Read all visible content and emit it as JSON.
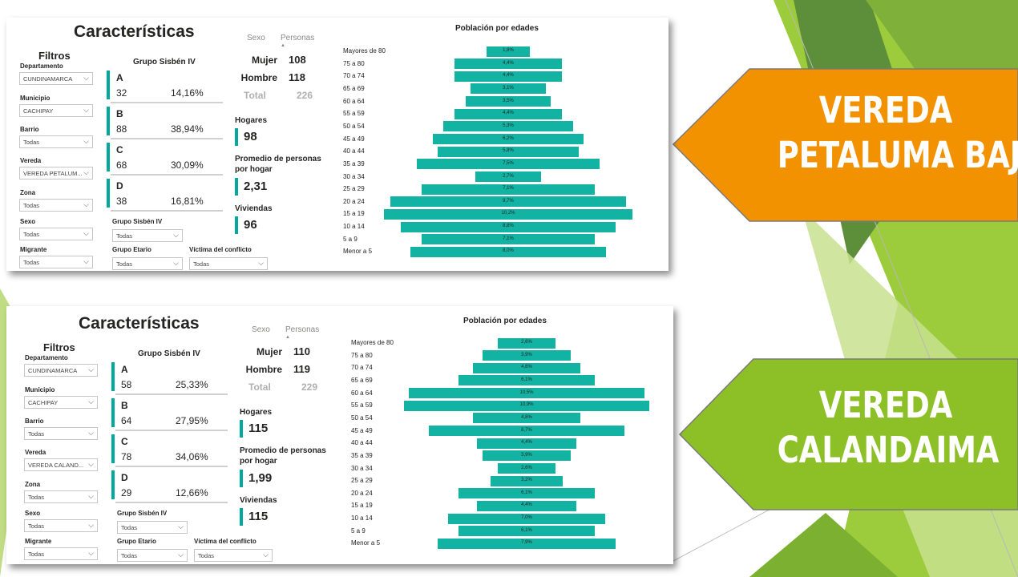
{
  "colors": {
    "teal": "#00a89d",
    "orange": "#f39200",
    "green": "#8dc027"
  },
  "banners": [
    {
      "line1": "VEREDA",
      "line2": "PETALUMA BAJA"
    },
    {
      "line1": "VEREDA",
      "line2": "CALANDAIMA"
    }
  ],
  "panels": [
    {
      "title": "Características",
      "filters_title": "Filtros",
      "filters": [
        {
          "label": "Departamento",
          "value": "CUNDINAMARCA"
        },
        {
          "label": "Municipio",
          "value": "CACHIPAY"
        },
        {
          "label": "Barrio",
          "value": "Todas"
        },
        {
          "label": "Vereda",
          "value": "VEREDA PETALUM..."
        },
        {
          "label": "Zona",
          "value": "Todas"
        },
        {
          "label": "Sexo",
          "value": "Todas"
        },
        {
          "label": "Migrante",
          "value": "Todas"
        }
      ],
      "extra_filters": [
        {
          "label": "Grupo Sisbén IV",
          "value": "Todas"
        },
        {
          "label": "Grupo Etario",
          "value": "Todas"
        },
        {
          "label": "Víctima del conflicto",
          "value": "Todas"
        }
      ],
      "group_title": "Grupo Sisbén IV",
      "groups": [
        {
          "letter": "A",
          "count": "32",
          "pct": "14,16%"
        },
        {
          "letter": "B",
          "count": "88",
          "pct": "38,94%"
        },
        {
          "letter": "C",
          "count": "68",
          "pct": "30,09%"
        },
        {
          "letter": "D",
          "count": "38",
          "pct": "16,81%"
        }
      ],
      "sex_table": {
        "col_sexo": "Sexo",
        "col_personas": "Personas",
        "rows": [
          {
            "label": "Mujer",
            "value": "108"
          },
          {
            "label": "Hombre",
            "value": "118"
          }
        ],
        "total_label": "Total",
        "total_value": "226"
      },
      "kpis": [
        {
          "label": "Hogares",
          "value": "98"
        },
        {
          "label": "Promedio de personas por hogar",
          "value": "2,31"
        },
        {
          "label": "Viviendas",
          "value": "96"
        }
      ],
      "chart_data": {
        "type": "bar",
        "title": "Población por edades",
        "categories": [
          "Mayores de 80",
          "75 a 80",
          "70 a 74",
          "65 a 69",
          "60 a 64",
          "55 a 59",
          "50 a 54",
          "45 a 49",
          "40 a 44",
          "35 a 39",
          "30 a 34",
          "25 a 29",
          "20 a 24",
          "15 a 19",
          "10 a 14",
          "5 a 9",
          "Menor a 5"
        ],
        "values": [
          1.8,
          4.4,
          4.4,
          3.1,
          3.5,
          4.4,
          5.3,
          6.2,
          5.8,
          7.5,
          2.7,
          7.1,
          9.7,
          10.2,
          8.8,
          7.1,
          8.0
        ],
        "labels": [
          "1,8%",
          "4,4%",
          "4,4%",
          "3,1%",
          "3,5%",
          "4,4%",
          "5,3%",
          "6,2%",
          "5,8%",
          "7,5%",
          "2,7%",
          "7,1%",
          "9,7%",
          "10,2%",
          "8,8%",
          "7,1%",
          "8,0%"
        ]
      }
    },
    {
      "title": "Características",
      "filters_title": "Filtros",
      "filters": [
        {
          "label": "Departamento",
          "value": "CUNDINAMARCA"
        },
        {
          "label": "Municipio",
          "value": "CACHIPAY"
        },
        {
          "label": "Barrio",
          "value": "Todas"
        },
        {
          "label": "Vereda",
          "value": "VEREDA CALAND..."
        },
        {
          "label": "Zona",
          "value": "Todas"
        },
        {
          "label": "Sexo",
          "value": "Todas"
        },
        {
          "label": "Migrante",
          "value": "Todas"
        }
      ],
      "extra_filters": [
        {
          "label": "Grupo Sisbén IV",
          "value": "Todas"
        },
        {
          "label": "Grupo Etario",
          "value": "Todas"
        },
        {
          "label": "Víctima del conflicto",
          "value": "Todas"
        }
      ],
      "group_title": "Grupo Sisbén IV",
      "groups": [
        {
          "letter": "A",
          "count": "58",
          "pct": "25,33%"
        },
        {
          "letter": "B",
          "count": "64",
          "pct": "27,95%"
        },
        {
          "letter": "C",
          "count": "78",
          "pct": "34,06%"
        },
        {
          "letter": "D",
          "count": "29",
          "pct": "12,66%"
        }
      ],
      "sex_table": {
        "col_sexo": "Sexo",
        "col_personas": "Personas",
        "rows": [
          {
            "label": "Mujer",
            "value": "110"
          },
          {
            "label": "Hombre",
            "value": "119"
          }
        ],
        "total_label": "Total",
        "total_value": "229"
      },
      "kpis": [
        {
          "label": "Hogares",
          "value": "115"
        },
        {
          "label": "Promedio de personas por hogar",
          "value": "1,99"
        },
        {
          "label": "Viviendas",
          "value": "115"
        }
      ],
      "chart_data": {
        "type": "bar",
        "title": "Población por edades",
        "categories": [
          "Mayores de 80",
          "75 a 80",
          "70 a 74",
          "65 a 69",
          "60 a 64",
          "55 a 59",
          "50 a 54",
          "45 a 49",
          "40 a 44",
          "35 a 39",
          "30 a 34",
          "25 a 29",
          "20 a 24",
          "15 a 19",
          "10 a 14",
          "5 a 9",
          "Menor a 5"
        ],
        "values": [
          2.6,
          3.9,
          4.8,
          6.1,
          10.5,
          10.9,
          4.8,
          8.7,
          4.4,
          3.9,
          2.6,
          3.2,
          6.1,
          4.4,
          7.0,
          6.1,
          7.9
        ],
        "labels": [
          "2,6%",
          "3,9%",
          "4,8%",
          "6,1%",
          "10,5%",
          "10,9%",
          "4,8%",
          "8,7%",
          "4,4%",
          "3,9%",
          "2,6%",
          "3,2%",
          "6,1%",
          "4,4%",
          "7,0%",
          "6,1%",
          "7,9%"
        ]
      }
    }
  ]
}
